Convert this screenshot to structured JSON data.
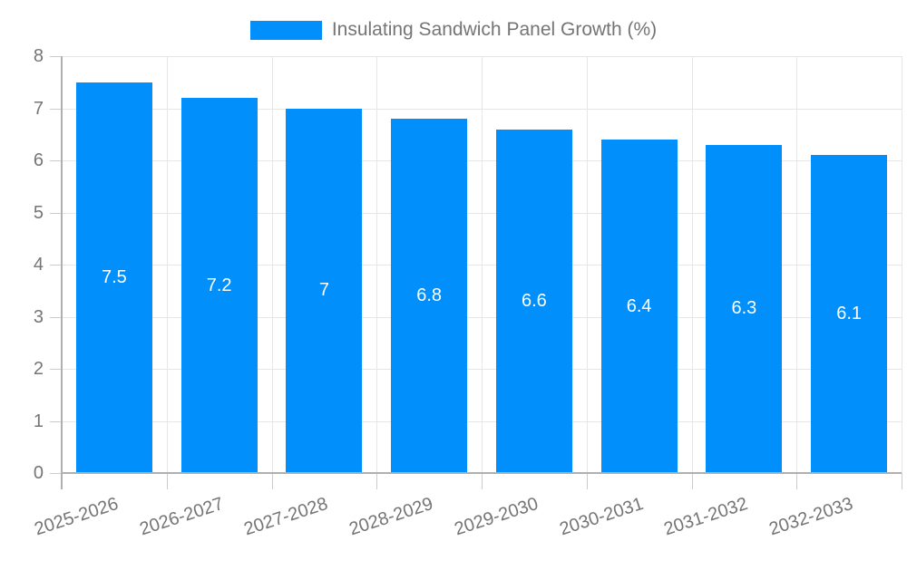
{
  "chart_data": {
    "type": "bar",
    "series_name": "Insulating Sandwich Panel Growth (%)",
    "categories": [
      "2025-2026",
      "2026-2027",
      "2027-2028",
      "2028-2029",
      "2029-2030",
      "2030-2031",
      "2031-2032",
      "2032-2033"
    ],
    "values": [
      7.5,
      7.2,
      7,
      6.8,
      6.6,
      6.4,
      6.3,
      6.1
    ],
    "bar_labels": [
      "7.5",
      "7.2",
      "7",
      "6.8",
      "6.6",
      "6.4",
      "6.3",
      "6.1"
    ],
    "title": "",
    "xlabel": "",
    "ylabel": "",
    "ylim": [
      0,
      8
    ],
    "ytick_step": 1,
    "grid": true,
    "legend_position": "top-center",
    "x_label_rotation_deg": -18,
    "colors": {
      "bar": "#008FFB",
      "bar_label": "#FFFFFF",
      "axis_text": "#757575",
      "grid": "#E6E6E6",
      "axis_line": "#B0B0B0",
      "tick": "#CCCCCC"
    }
  }
}
